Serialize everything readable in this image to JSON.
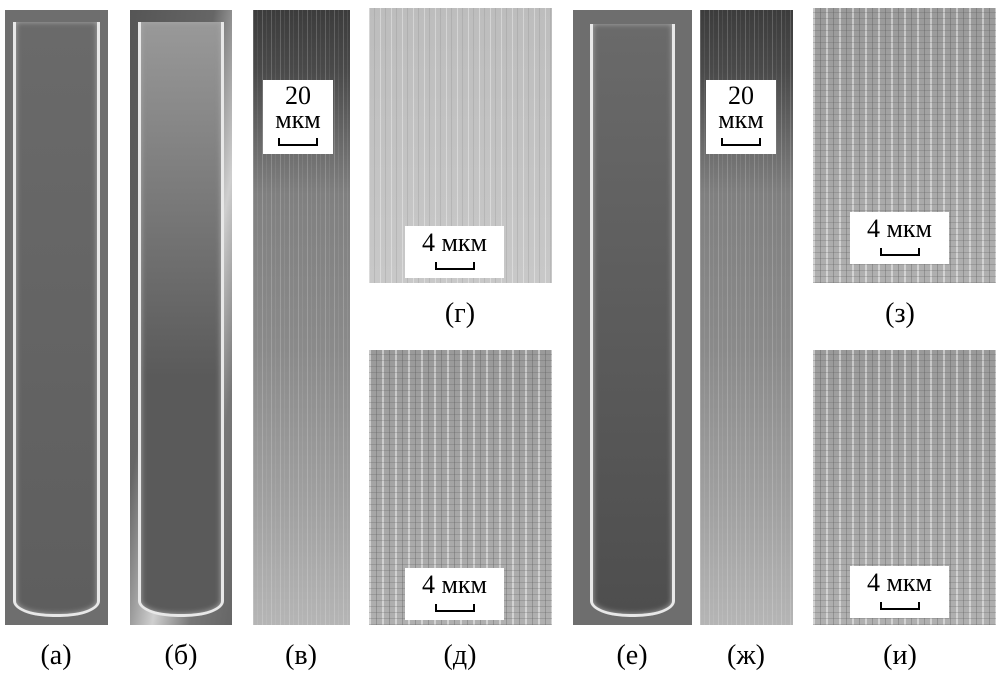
{
  "panels": [
    {
      "label": "(а)"
    },
    {
      "label": "(б)"
    },
    {
      "label": "(в)",
      "scale": {
        "number": "20",
        "unit": "мкм"
      }
    },
    {
      "label": "(г)",
      "scale": {
        "number": "4",
        "unit": "мкм"
      }
    },
    {
      "label": "(д)",
      "scale": {
        "number": "4",
        "unit": "мкм"
      }
    },
    {
      "label": "(е)"
    },
    {
      "label": "(ж)",
      "scale": {
        "number": "20",
        "unit": "мкм"
      }
    },
    {
      "label": "(з)",
      "scale": {
        "number": "4",
        "unit": "мкм"
      }
    },
    {
      "label": "(и)",
      "scale": {
        "number": "4",
        "unit": "мкм"
      }
    }
  ]
}
